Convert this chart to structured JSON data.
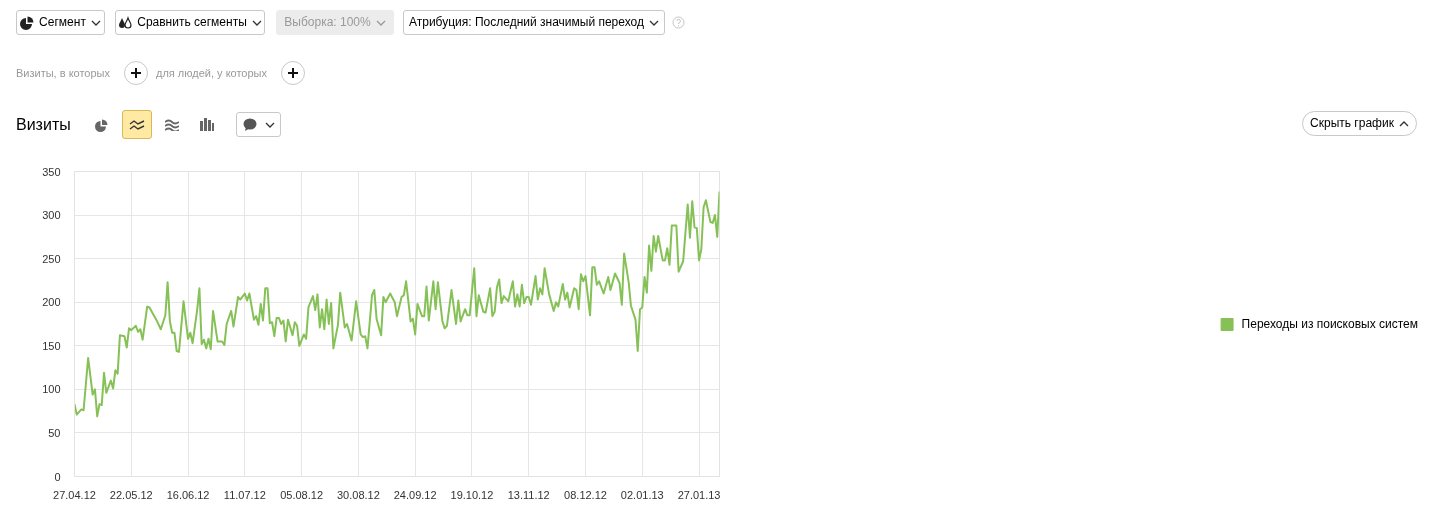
{
  "chart_data": {
    "type": "line",
    "title": "Визиты",
    "annotations": [
      "Сегмент",
      "Сравнить сегменты",
      "Выборка: 100%",
      "Атрибуция: Последний значимый переход",
      "Визиты, в которых",
      "для людей, у которых",
      "Скрыть график"
    ],
    "x": [
      "2012-04-27",
      "2012-04-28",
      "2012-04-30",
      "2012-05-01",
      "2012-05-03",
      "2012-05-05",
      "2012-05-06",
      "2012-05-07",
      "2012-05-08",
      "2012-05-09",
      "2012-05-10",
      "2012-05-11",
      "2012-05-13",
      "2012-05-14",
      "2012-05-15",
      "2012-05-16",
      "2012-05-17",
      "2012-05-19",
      "2012-05-20",
      "2012-05-21",
      "2012-05-22",
      "2012-05-24",
      "2012-05-25",
      "2012-05-26",
      "2012-05-27",
      "2012-05-29",
      "2012-05-30",
      "2012-06-02",
      "2012-06-04",
      "2012-06-06",
      "2012-06-07",
      "2012-06-08",
      "2012-06-09",
      "2012-06-10",
      "2012-06-11",
      "2012-06-12",
      "2012-06-14",
      "2012-06-16",
      "2012-06-17",
      "2012-06-18",
      "2012-06-20",
      "2012-06-21",
      "2012-06-22",
      "2012-06-23",
      "2012-06-24",
      "2012-06-25",
      "2012-06-26",
      "2012-06-27",
      "2012-06-29",
      "2012-07-01",
      "2012-07-02",
      "2012-07-03",
      "2012-07-05",
      "2012-07-06",
      "2012-07-08",
      "2012-07-09",
      "2012-07-11",
      "2012-07-12",
      "2012-07-13",
      "2012-07-15",
      "2012-07-16",
      "2012-07-17",
      "2012-07-18",
      "2012-07-19",
      "2012-07-20",
      "2012-07-21",
      "2012-07-22",
      "2012-07-23",
      "2012-07-24",
      "2012-07-25",
      "2012-07-26",
      "2012-07-27",
      "2012-07-28",
      "2012-07-29",
      "2012-07-30",
      "2012-08-01",
      "2012-08-02",
      "2012-08-03",
      "2012-08-04",
      "2012-08-06",
      "2012-08-07",
      "2012-08-08",
      "2012-08-10",
      "2012-08-11",
      "2012-08-12",
      "2012-08-13",
      "2012-08-14",
      "2012-08-15",
      "2012-08-16",
      "2012-08-17",
      "2012-08-18",
      "2012-08-19",
      "2012-08-21",
      "2012-08-22",
      "2012-08-24",
      "2012-08-25",
      "2012-08-27",
      "2012-08-29",
      "2012-08-31",
      "2012-09-01",
      "2012-09-02",
      "2012-09-03",
      "2012-09-05",
      "2012-09-06",
      "2012-09-07",
      "2012-09-09",
      "2012-09-10",
      "2012-09-11",
      "2012-09-13",
      "2012-09-15",
      "2012-09-16",
      "2012-09-18",
      "2012-09-19",
      "2012-09-20",
      "2012-09-22",
      "2012-09-23",
      "2012-09-24",
      "2012-09-25",
      "2012-09-27",
      "2012-09-28",
      "2012-09-29",
      "2012-09-30",
      "2012-10-02",
      "2012-10-03",
      "2012-10-04",
      "2012-10-06",
      "2012-10-07",
      "2012-10-08",
      "2012-10-10",
      "2012-10-12",
      "2012-10-13",
      "2012-10-14",
      "2012-10-16",
      "2012-10-17",
      "2012-10-18",
      "2012-10-20",
      "2012-10-21",
      "2012-10-22",
      "2012-10-24",
      "2012-10-25",
      "2012-10-27",
      "2012-10-28",
      "2012-10-29",
      "2012-10-30",
      "2012-10-31",
      "2012-11-01",
      "2012-11-02",
      "2012-11-04",
      "2012-11-06",
      "2012-11-07",
      "2012-11-08",
      "2012-11-09",
      "2012-11-10",
      "2012-11-11",
      "2012-11-12",
      "2012-11-13",
      "2012-11-14",
      "2012-11-16",
      "2012-11-17",
      "2012-11-18",
      "2012-11-19",
      "2012-11-20",
      "2012-11-22",
      "2012-11-24",
      "2012-11-25",
      "2012-11-26",
      "2012-11-28",
      "2012-11-29",
      "2012-11-30",
      "2012-12-01",
      "2012-12-03",
      "2012-12-04",
      "2012-12-05",
      "2012-12-06",
      "2012-12-07",
      "2012-12-08",
      "2012-12-10",
      "2012-12-11",
      "2012-12-12",
      "2012-12-13",
      "2012-12-14",
      "2012-12-16",
      "2012-12-18",
      "2012-12-19",
      "2012-12-21",
      "2012-12-23",
      "2012-12-24",
      "2012-12-25",
      "2012-12-27",
      "2012-12-28",
      "2012-12-30",
      "2012-12-31",
      "2013-01-01",
      "2013-01-02",
      "2013-01-03",
      "2013-01-04",
      "2013-01-05",
      "2013-01-06",
      "2013-01-07",
      "2013-01-08",
      "2013-01-09",
      "2013-01-11",
      "2013-01-12",
      "2013-01-13",
      "2013-01-14",
      "2013-01-15",
      "2013-01-17",
      "2013-01-18",
      "2013-01-20",
      "2013-01-22",
      "2013-01-23",
      "2013-01-24",
      "2013-01-25",
      "2013-01-26",
      "2013-01-27",
      "2013-01-28",
      "2013-01-29",
      "2013-01-30",
      "2013-02-01",
      "2013-02-02",
      "2013-02-03",
      "2013-02-04",
      "2013-02-05"
    ],
    "series": [
      {
        "name": "Переходы из поисковых систем",
        "color": "#86c157",
        "values": [
          83,
          71,
          77,
          76,
          136,
          94,
          100,
          69,
          83,
          82,
          119,
          96,
          110,
          101,
          122,
          118,
          162,
          161,
          148,
          170,
          168,
          173,
          166,
          169,
          157,
          195,
          194,
          180,
          169,
          185,
          223,
          178,
          165,
          165,
          144,
          143,
          201,
          158,
          165,
          153,
          191,
          216,
          152,
          157,
          147,
          158,
          146,
          190,
          155,
          155,
          151,
          175,
          190,
          172,
          206,
          203,
          210,
          202,
          210,
          180,
          184,
          174,
          198,
          179,
          216,
          216,
          176,
          177,
          161,
          182,
          182,
          175,
          179,
          155,
          180,
          162,
          177,
          173,
          150,
          163,
          158,
          194,
          207,
          191,
          209,
          171,
          192,
          169,
          203,
          175,
          199,
          147,
          174,
          211,
          171,
          175,
          156,
          201,
          163,
          160,
          161,
          147,
          208,
          214,
          181,
          162,
          206,
          200,
          210,
          200,
          184,
          206,
          208,
          224,
          178,
          181,
          163,
          198,
          184,
          184,
          218,
          179,
          224,
          192,
          223,
          178,
          170,
          173,
          214,
          175,
          202,
          178,
          192,
          185,
          185,
          239,
          184,
          208,
          189,
          188,
          216,
          184,
          189,
          217,
          226,
          199,
          207,
          201,
          224,
          195,
          209,
          195,
          220,
          199,
          206,
          206,
          197,
          230,
          203,
          216,
          209,
          239,
          209,
          190,
          200,
          195,
          221,
          203,
          211,
          194,
          216,
          214,
          192,
          232,
          224,
          230,
          185,
          240,
          240,
          220,
          224,
          210,
          229,
          214,
          233,
          222,
          197,
          256,
          223,
          196,
          180,
          144,
          192,
          194,
          229,
          211,
          265,
          236,
          276,
          258,
          276,
          248,
          248,
          262,
          243,
          288,
          288,
          235,
          247,
          312,
          274,
          316,
          286,
          285,
          248,
          261,
          309,
          317,
          292,
          291,
          300,
          275,
          327
        ]
      }
    ],
    "xlim": [
      "2012-04-27",
      "2013-02-05"
    ],
    "xticks": [
      {
        "value": "2012-04-27",
        "label": "27.04.12"
      },
      {
        "value": "2012-05-22",
        "label": "22.05.12"
      },
      {
        "value": "2012-06-16",
        "label": "16.06.12"
      },
      {
        "value": "2012-07-11",
        "label": "11.07.12"
      },
      {
        "value": "2012-08-05",
        "label": "05.08.12"
      },
      {
        "value": "2012-08-30",
        "label": "30.08.12"
      },
      {
        "value": "2012-09-24",
        "label": "24.09.12"
      },
      {
        "value": "2012-10-19",
        "label": "19.10.12"
      },
      {
        "value": "2012-11-13",
        "label": "13.11.12"
      },
      {
        "value": "2012-12-08",
        "label": "08.12.12"
      },
      {
        "value": "2013-01-02",
        "label": "02.01.13"
      },
      {
        "value": "2013-01-27",
        "label": "27.01.13"
      }
    ],
    "ylim": [
      0,
      350
    ],
    "yticks": [
      0,
      50,
      100,
      150,
      200,
      250,
      300,
      350
    ],
    "grid": true,
    "legend": "right"
  }
}
